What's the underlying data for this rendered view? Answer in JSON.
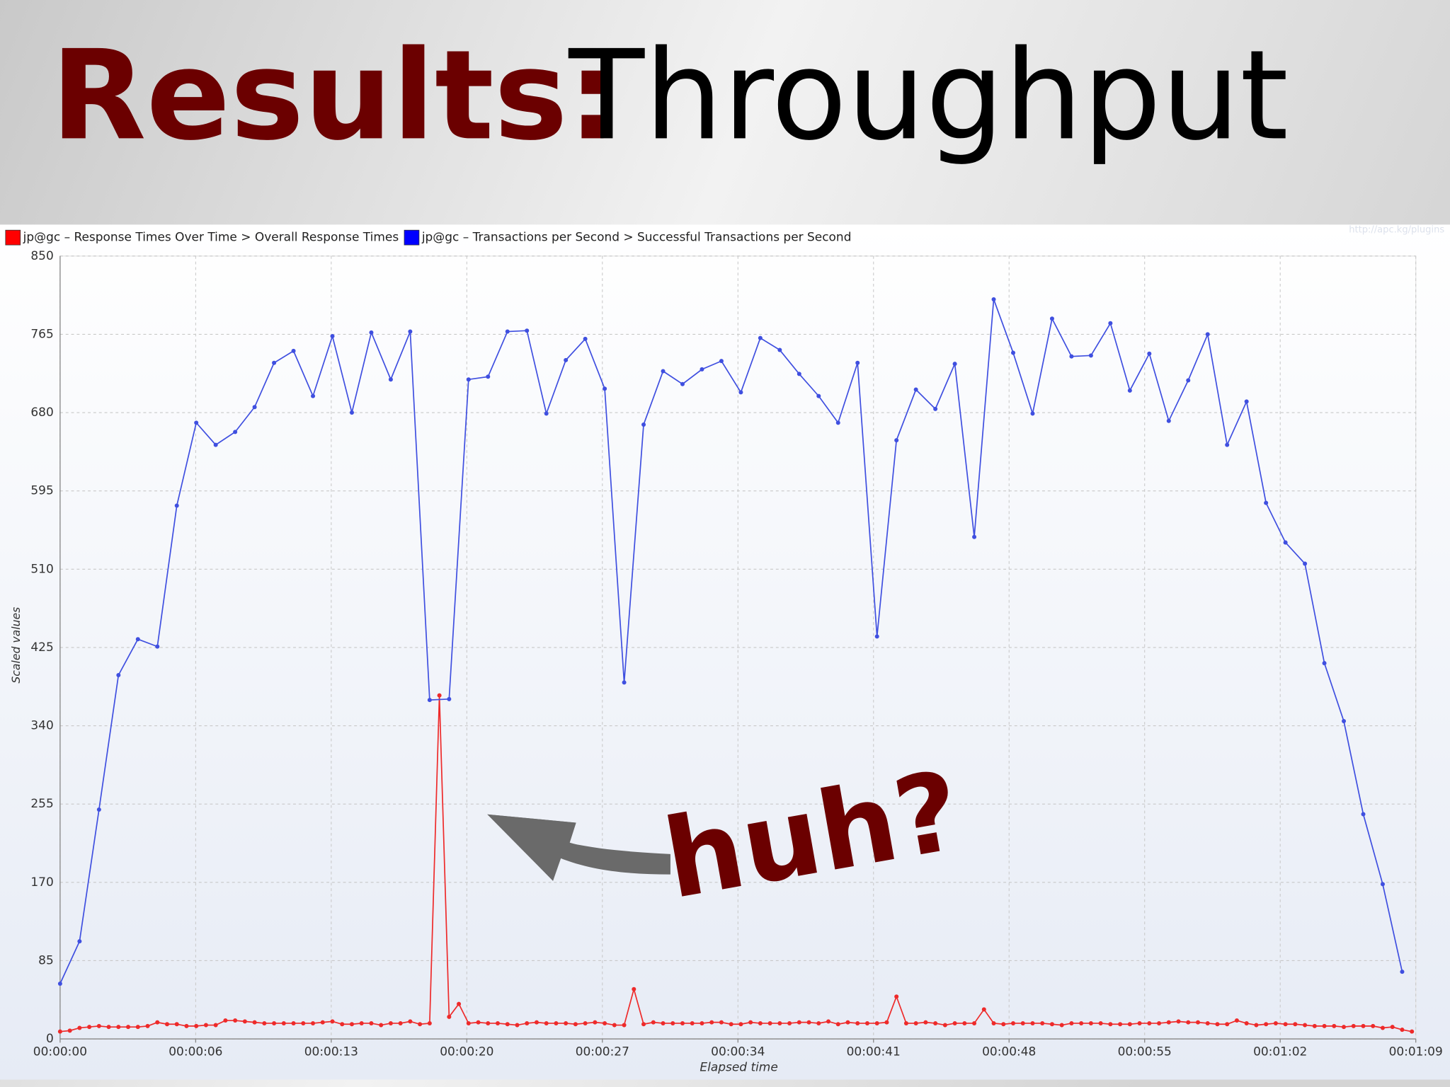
{
  "slide": {
    "title_bold": "Results:",
    "title_rest": "Throughput"
  },
  "chart_data": {
    "type": "line",
    "watermark": "http://apc.kg/plugins",
    "annotation": "huh?",
    "xlabel": "Elapsed time",
    "ylabel": "Scaled values",
    "grid": true,
    "legend": "top-left",
    "ylim": [
      0,
      850
    ],
    "yticks": [
      0,
      85,
      170,
      255,
      340,
      425,
      510,
      595,
      680,
      765,
      850
    ],
    "xlim": [
      0,
      69.7
    ],
    "xticks": [
      {
        "value": 0,
        "label": "00:00:00"
      },
      {
        "value": 6.97,
        "label": "00:00:06"
      },
      {
        "value": 13.94,
        "label": "00:00:13"
      },
      {
        "value": 20.91,
        "label": "00:00:20"
      },
      {
        "value": 27.88,
        "label": "00:00:27"
      },
      {
        "value": 34.85,
        "label": "00:00:34"
      },
      {
        "value": 41.82,
        "label": "00:00:41"
      },
      {
        "value": 48.79,
        "label": "00:00:48"
      },
      {
        "value": 55.76,
        "label": "00:00:55"
      },
      {
        "value": 62.73,
        "label": "00:01:02"
      },
      {
        "value": 69.7,
        "label": "00:01:09"
      }
    ],
    "series": [
      {
        "name": "jp@gc – Response Times Over Time > Overall Response Times",
        "color": "#ee2a2a",
        "x": [
          0,
          0.5,
          1,
          1.5,
          2,
          2.5,
          3,
          3.5,
          4,
          4.5,
          5,
          5.5,
          6,
          6.5,
          7,
          7.5,
          8,
          8.5,
          9,
          9.5,
          10,
          10.5,
          11,
          11.5,
          12,
          12.5,
          13,
          13.5,
          14,
          14.5,
          15,
          15.5,
          16,
          16.5,
          17,
          17.5,
          18,
          18.5,
          19,
          19.5,
          20,
          20.5,
          21,
          21.5,
          22,
          22.5,
          23,
          23.5,
          24,
          24.5,
          25,
          25.5,
          26,
          26.5,
          27,
          27.5,
          28,
          28.5,
          29,
          29.5,
          30,
          30.5,
          31,
          31.5,
          32,
          32.5,
          33,
          33.5,
          34,
          34.5,
          35,
          35.5,
          36,
          36.5,
          37,
          37.5,
          38,
          38.5,
          39,
          39.5,
          40,
          40.5,
          41,
          41.5,
          42,
          42.5,
          43,
          43.5,
          44,
          44.5,
          45,
          45.5,
          46,
          46.5,
          47,
          47.5,
          48,
          48.5,
          49,
          49.5,
          50,
          50.5,
          51,
          51.5,
          52,
          52.5,
          53,
          53.5,
          54,
          54.5,
          55,
          55.5,
          56,
          56.5,
          57,
          57.5,
          58,
          58.5,
          59,
          59.5,
          60,
          60.5,
          61,
          61.5,
          62,
          62.5,
          63,
          63.5,
          64,
          64.5,
          65,
          65.5,
          66,
          66.5,
          67,
          67.5,
          68,
          68.5,
          69,
          69.5
        ],
        "values": [
          8,
          9,
          12,
          13,
          14,
          13,
          13,
          13,
          13,
          14,
          18,
          16,
          16,
          14,
          14,
          15,
          15,
          20,
          20,
          19,
          18,
          17,
          17,
          17,
          17,
          17,
          17,
          18,
          19,
          16,
          16,
          17,
          17,
          15,
          17,
          17,
          19,
          16,
          17,
          373,
          24,
          38,
          17,
          18,
          17,
          17,
          16,
          15,
          17,
          18,
          17,
          17,
          17,
          16,
          17,
          18,
          17,
          15,
          15,
          54,
          16,
          18,
          17,
          17,
          17,
          17,
          17,
          18,
          18,
          16,
          16,
          18,
          17,
          17,
          17,
          17,
          18,
          18,
          17,
          19,
          16,
          18,
          17,
          17,
          17,
          18,
          46,
          17,
          17,
          18,
          17,
          15,
          17,
          17,
          17,
          32,
          17,
          16,
          17,
          17,
          17,
          17,
          16,
          15,
          17,
          17,
          17,
          17,
          16,
          16,
          16,
          17,
          17,
          17,
          18,
          19,
          18,
          18,
          17,
          16,
          16,
          20,
          17,
          15,
          16,
          17,
          16,
          16,
          15,
          14,
          14,
          14,
          13,
          14,
          14,
          14,
          12,
          13,
          10,
          8
        ]
      },
      {
        "name": "jp@gc – Transactions per Second > Successful Transactions per Second",
        "color": "#3f4fe0",
        "x": [
          0,
          1,
          2,
          3,
          4,
          5,
          6,
          7,
          8,
          9,
          10,
          11,
          12,
          13,
          14,
          15,
          16,
          17,
          18,
          19,
          20,
          21,
          22,
          23,
          24,
          25,
          26,
          27,
          28,
          29,
          30,
          31,
          32,
          33,
          34,
          35,
          36,
          37,
          38,
          39,
          40,
          41,
          42,
          43,
          44,
          45,
          46,
          47,
          48,
          49,
          50,
          51,
          52,
          53,
          54,
          55,
          56,
          57,
          58,
          59,
          60,
          61,
          62,
          63,
          64,
          65,
          66,
          67,
          68,
          69
        ],
        "values": [
          60,
          106,
          249,
          395,
          434,
          426,
          579,
          669,
          645,
          659,
          686,
          734,
          747,
          698,
          763,
          680,
          767,
          716,
          768,
          368,
          369,
          716,
          719,
          768,
          769,
          679,
          737,
          760,
          706,
          387,
          667,
          725,
          711,
          727,
          736,
          702,
          761,
          748,
          722,
          698,
          669,
          734,
          437,
          650,
          705,
          684,
          733,
          545,
          803,
          745,
          679,
          782,
          741,
          742,
          777,
          704,
          744,
          671,
          715,
          765,
          645,
          692,
          582,
          539,
          516,
          408,
          345,
          244,
          168,
          73
        ]
      }
    ]
  }
}
